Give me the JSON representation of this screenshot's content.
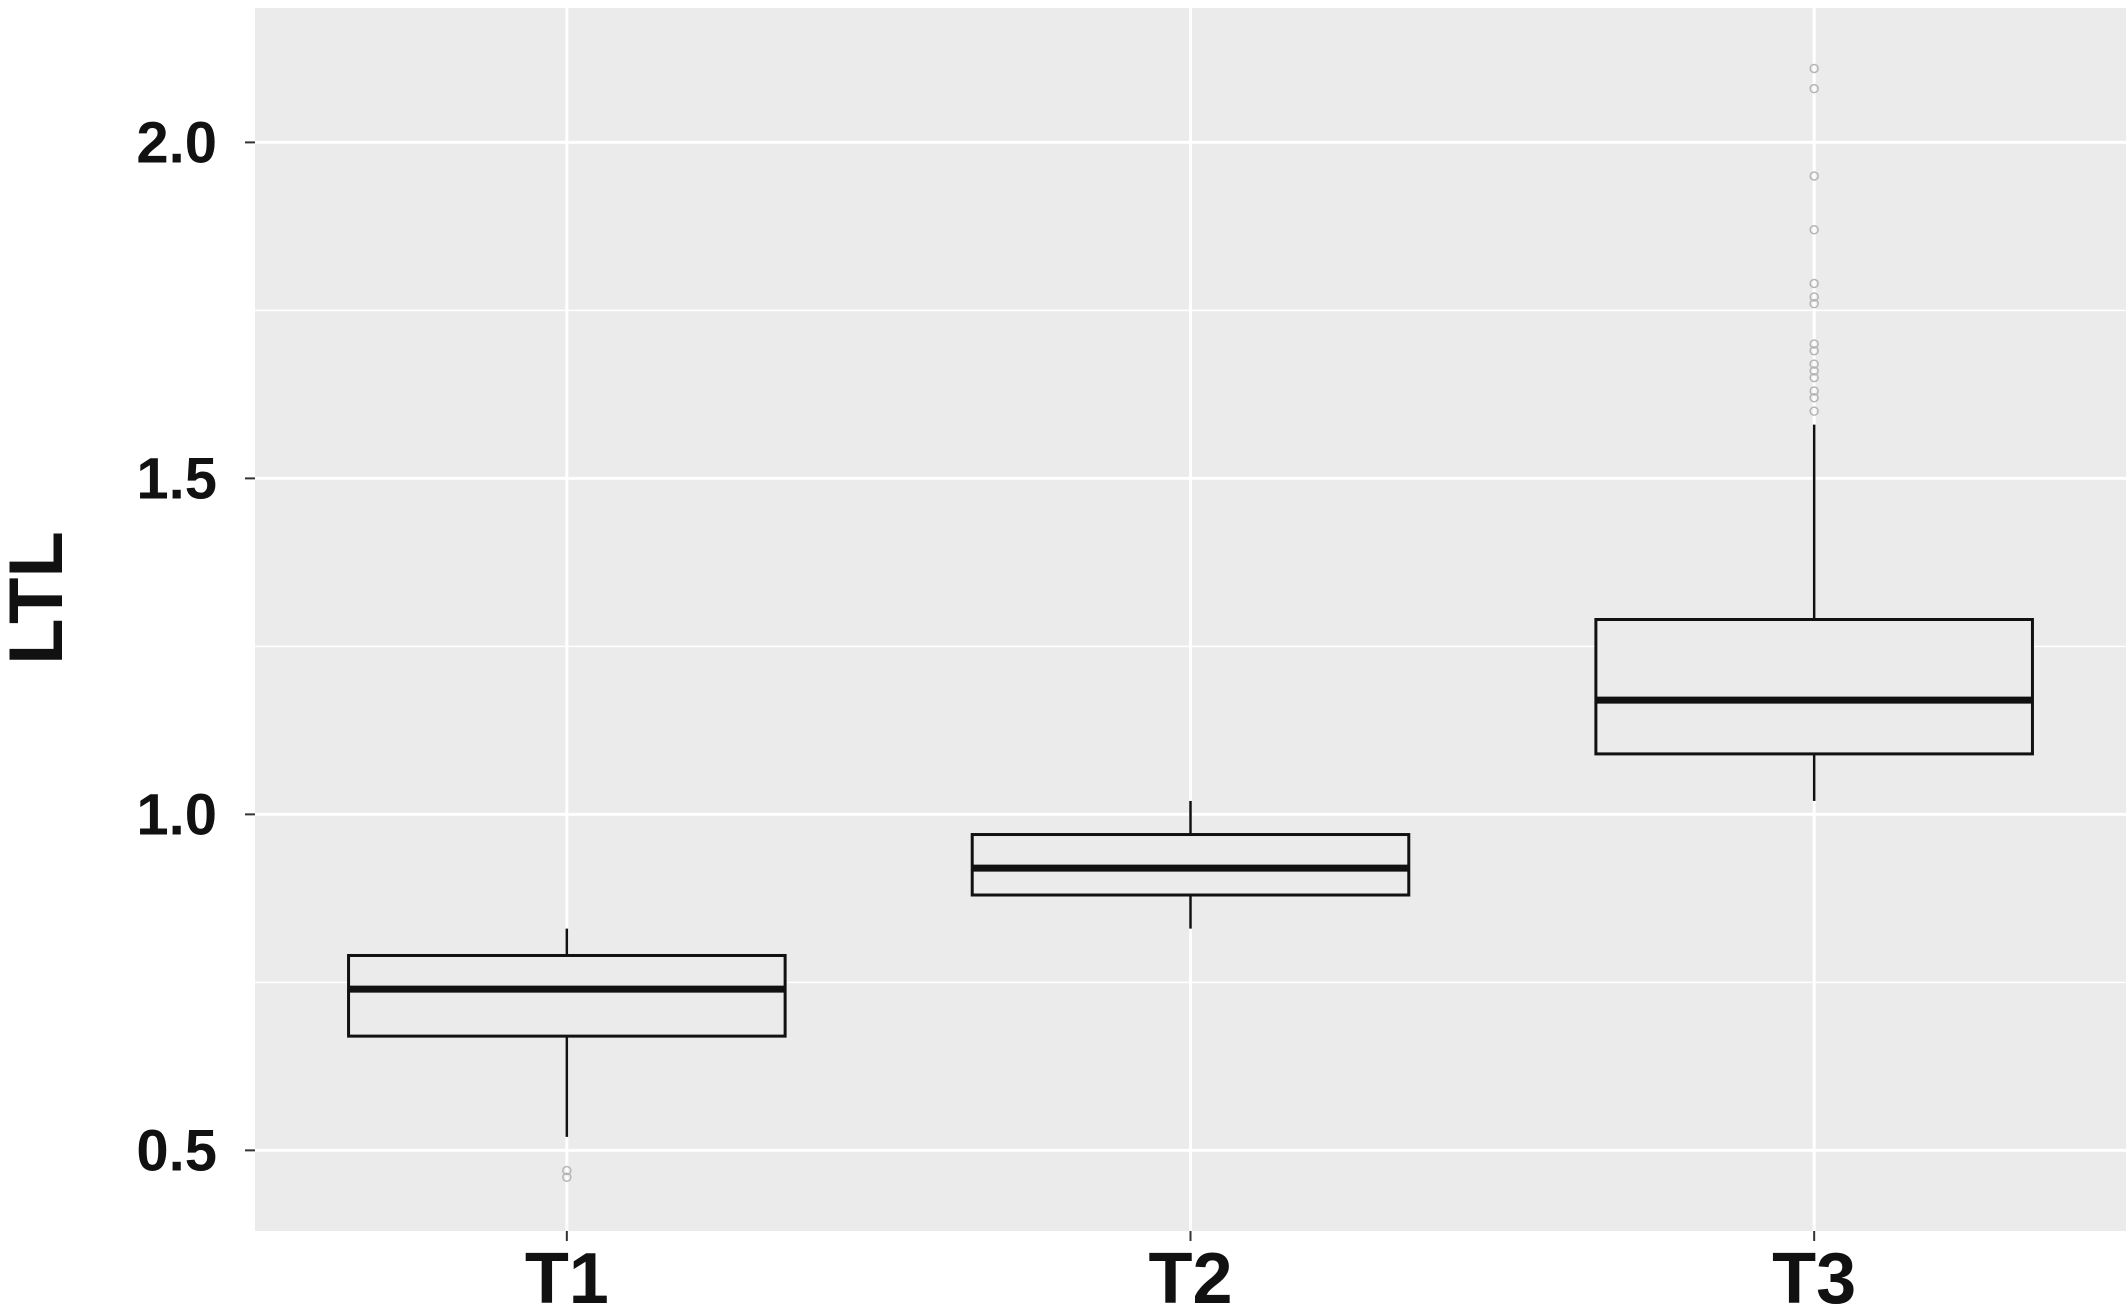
{
  "chart_data": {
    "type": "box",
    "ylabel": "LTL",
    "xlabel": "",
    "ylim": [
      0.38,
      2.2
    ],
    "yticks": [
      "0.5",
      "1.0",
      "1.5",
      "2.0"
    ],
    "yminor": [
      0.75,
      1.25,
      1.75
    ],
    "grid": true,
    "legend": "none",
    "colors": {
      "panel": "#ebebeb",
      "grid": "#ffffff",
      "box_fill": "#ebebeb",
      "box_line": "#111111",
      "outlier": "#b5b5b5"
    },
    "categories": [
      "T1",
      "T2",
      "T3"
    ],
    "boxes": [
      {
        "category": "T1",
        "lower_whisker": 0.52,
        "q1": 0.67,
        "median": 0.74,
        "q3": 0.79,
        "upper_whisker": 0.83,
        "outliers": [
          0.46,
          0.47
        ]
      },
      {
        "category": "T2",
        "lower_whisker": 0.83,
        "q1": 0.88,
        "median": 0.92,
        "q3": 0.97,
        "upper_whisker": 1.02,
        "outliers": []
      },
      {
        "category": "T3",
        "lower_whisker": 1.02,
        "q1": 1.09,
        "median": 1.17,
        "q3": 1.29,
        "upper_whisker": 1.58,
        "outliers": [
          1.6,
          1.62,
          1.63,
          1.65,
          1.66,
          1.67,
          1.69,
          1.7,
          1.76,
          1.77,
          1.79,
          1.87,
          1.95,
          2.08,
          2.11
        ]
      }
    ]
  }
}
